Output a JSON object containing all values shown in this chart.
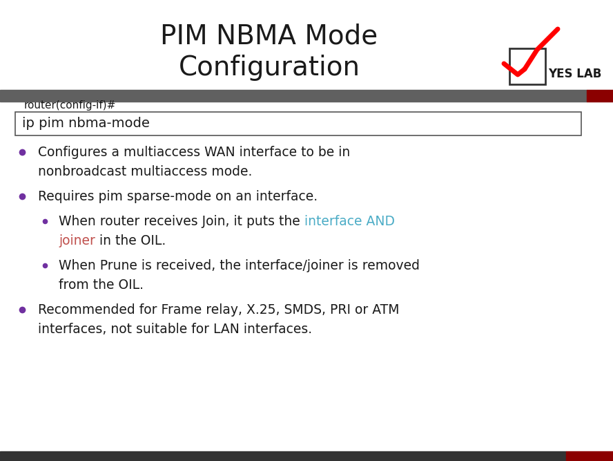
{
  "title_line1": "PIM NBMA Mode",
  "title_line2": "Configuration",
  "title_fontsize": 28,
  "bg_color": "#ffffff",
  "header_bar_color": "#606060",
  "header_bar_red_color": "#8B0000",
  "code_label": "router(config-if)#",
  "code_text": "ip pim nbma-mode",
  "code_fontsize": 14,
  "code_label_fontsize": 11,
  "bullet_color": "#7030A0",
  "text_color": "#1a1a1a",
  "highlight_blue": "#4BACC6",
  "highlight_orange": "#C0504D",
  "yes_lab_text": "YES LAB",
  "yes_lab_color": "#1a1a1a",
  "checkmark_color": "#FF0000",
  "bottom_bar_color": "#8B0000",
  "bottom_bar_left_color": "#333333"
}
